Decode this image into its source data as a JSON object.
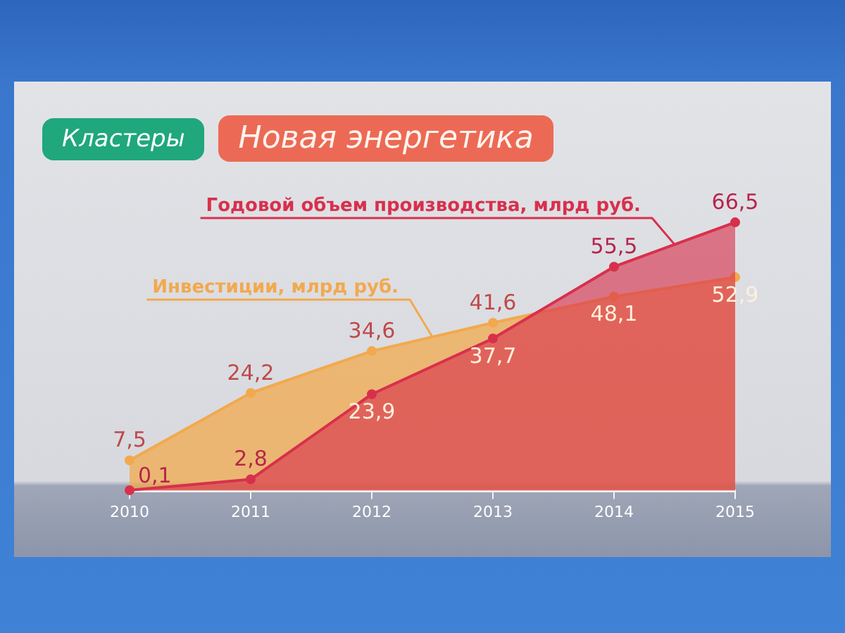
{
  "chart_data": {
    "type": "area",
    "title": "Новая энергетика",
    "subtitle": "Кластеры",
    "categories": [
      "2010",
      "2011",
      "2012",
      "2013",
      "2014",
      "2015"
    ],
    "series": [
      {
        "name": "Годовой объем производства, млрд руб.",
        "color": "#d8304c",
        "values": [
          0.1,
          2.8,
          23.9,
          37.7,
          55.5,
          66.5
        ],
        "value_labels": [
          "0,1",
          "2,8",
          "23,9",
          "37,7",
          "55,5",
          "66,5"
        ]
      },
      {
        "name": "Инвестиции, млрд руб.",
        "color": "#f2a94e",
        "values": [
          7.5,
          24.2,
          34.6,
          41.6,
          48.1,
          52.9
        ],
        "value_labels": [
          "7,5",
          "24,2",
          "34,6",
          "41,6",
          "48,1",
          "52,9"
        ]
      }
    ],
    "marker": "circle"
  }
}
